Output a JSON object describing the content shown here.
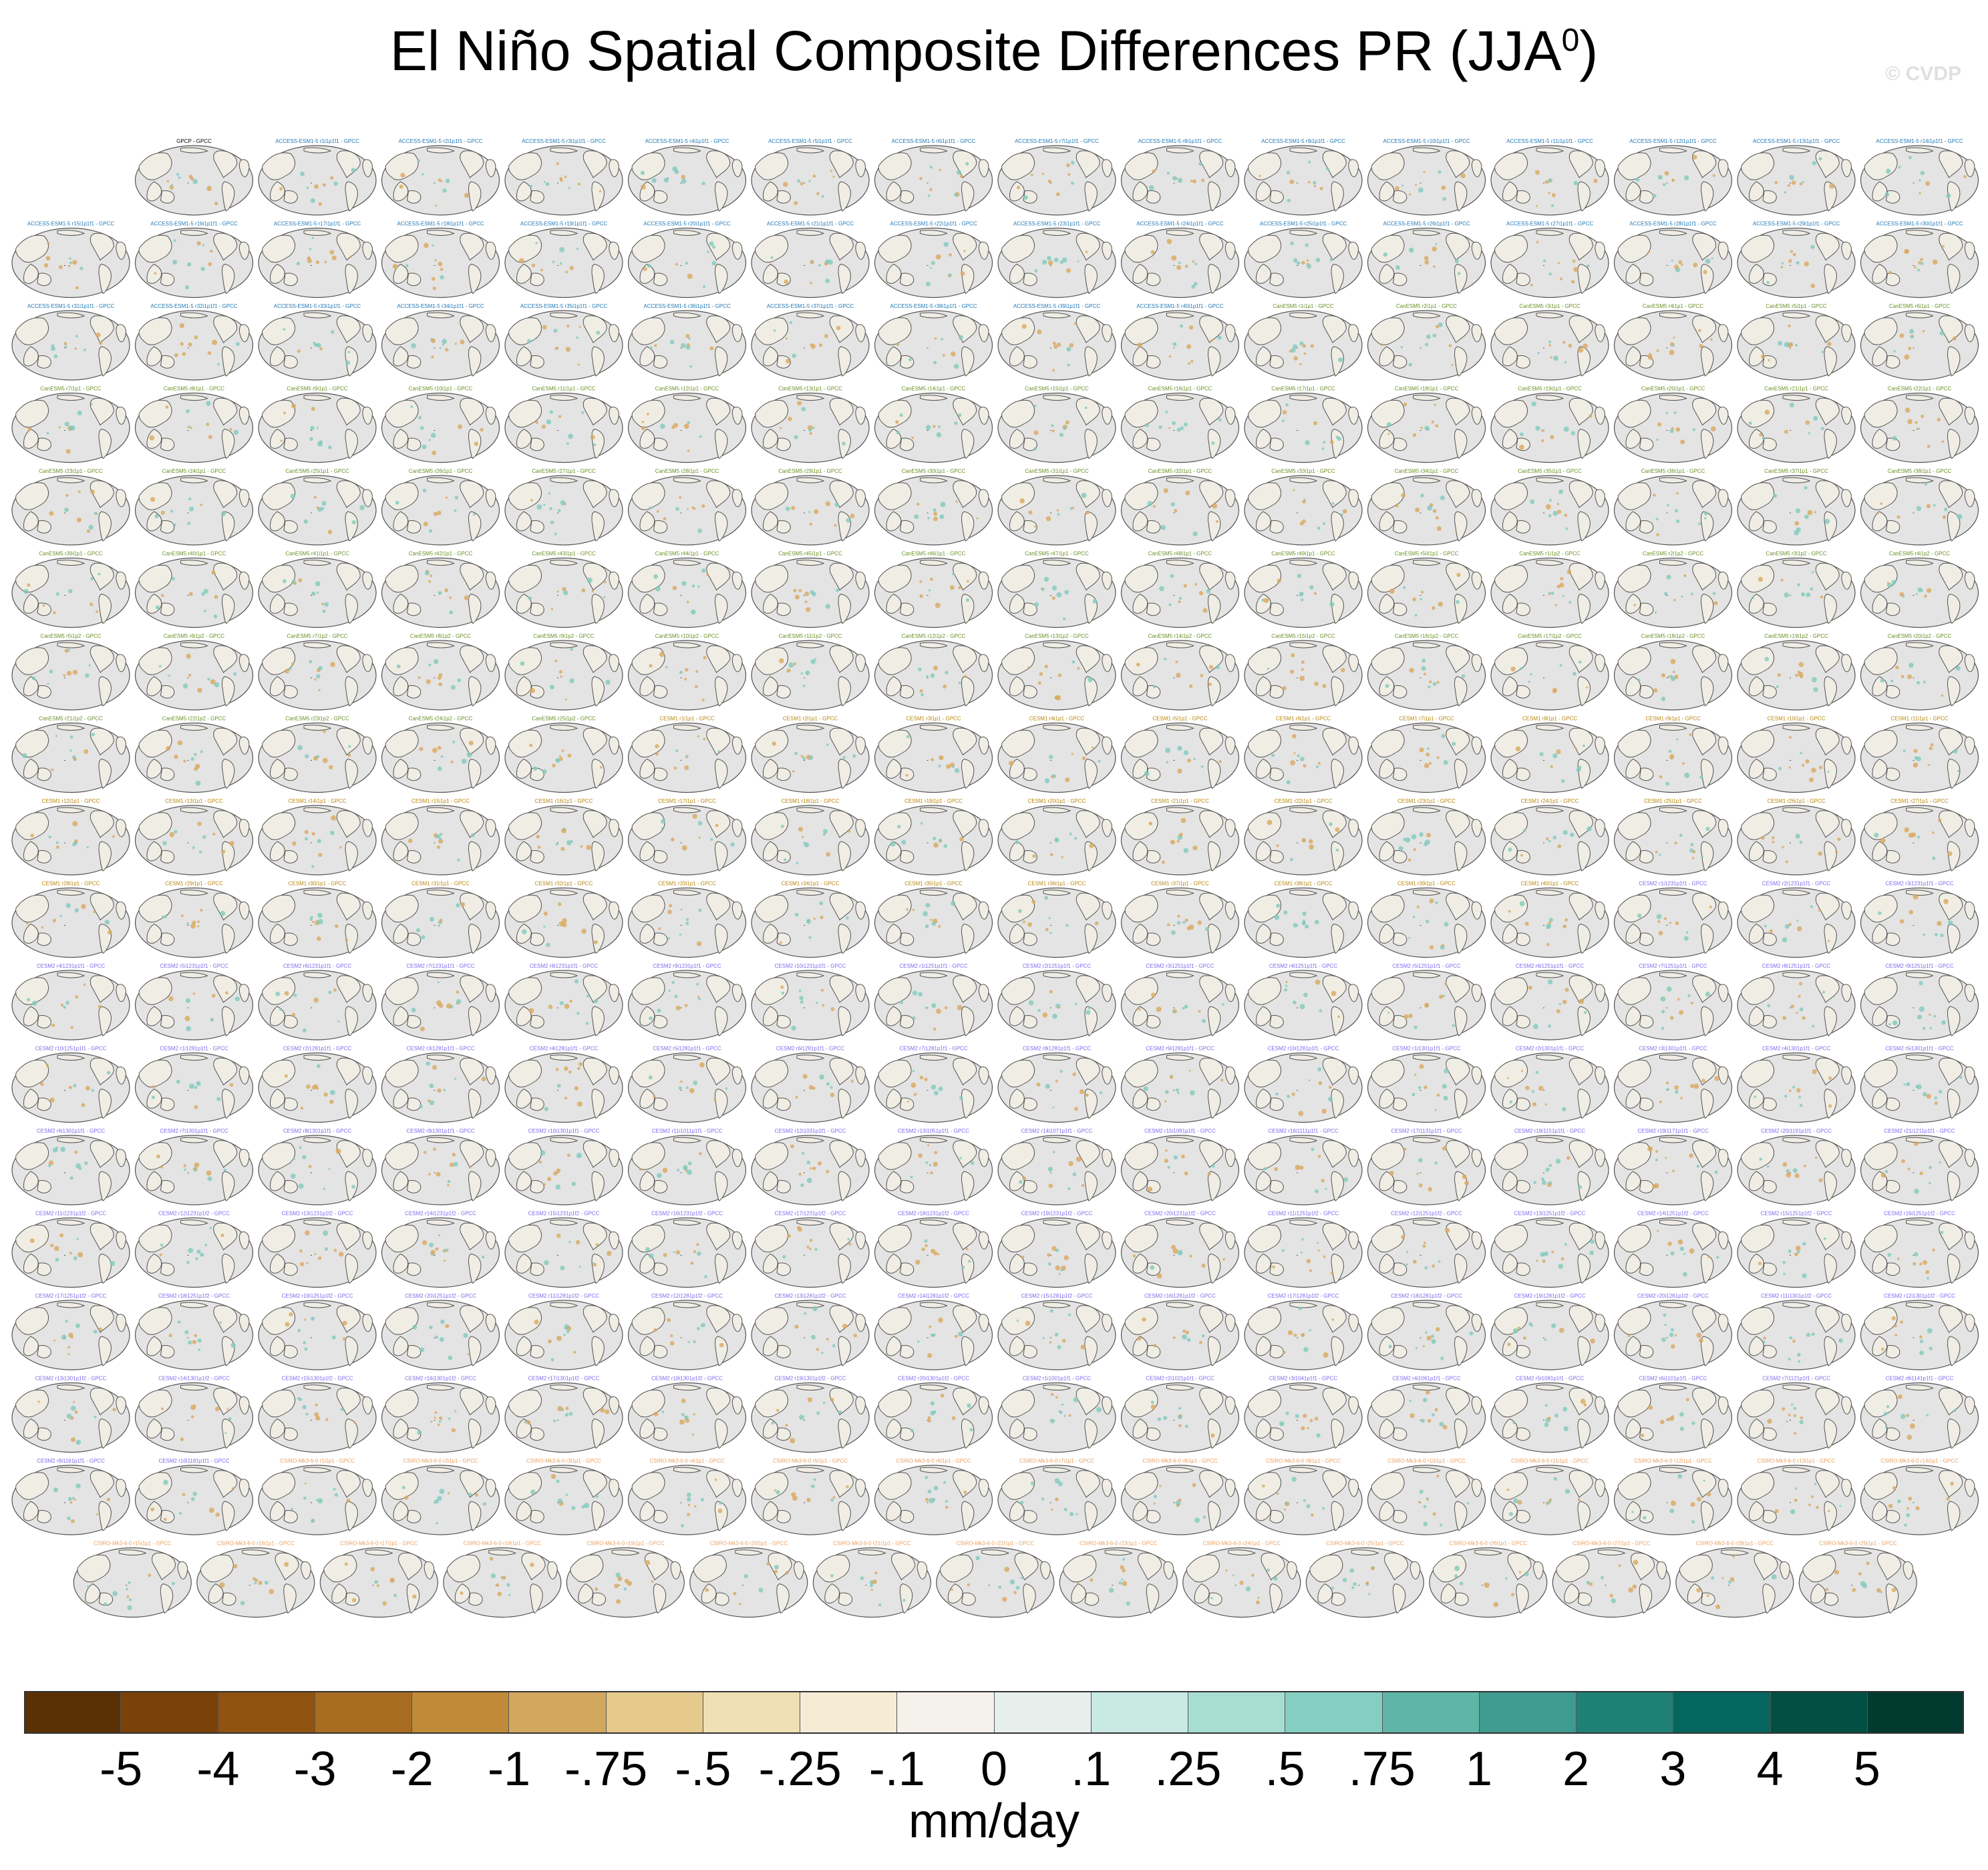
{
  "title": {
    "main": "El Niño Spatial Composite Differences PR (JJA",
    "superscript": "0",
    "close": ")"
  },
  "watermark": "© CVDP",
  "panels": {
    "row_counts": [
      15,
      16,
      16,
      16,
      16,
      16,
      16,
      16,
      16,
      16,
      16,
      16,
      16,
      16,
      16,
      16,
      16,
      15
    ],
    "labels": [
      [
        "GPCP - GPCC",
        "ACCESS-ESM1-5 r1i1p1f1 - GPCC",
        "ACCESS-ESM1-5 r2i1p1f1 - GPCC",
        "ACCESS-ESM1-5 r3i1p1f1 - GPCC",
        "ACCESS-ESM1-5 r4i1p1f1 - GPCC",
        "ACCESS-ESM1-5 r5i1p1f1 - GPCC",
        "ACCESS-ESM1-5 r6i1p1f1 - GPCC",
        "ACCESS-ESM1-5 r7i1p1f1 - GPCC",
        "ACCESS-ESM1-5 r8i1p1f1 - GPCC",
        "ACCESS-ESM1-5 r9i1p1f1 - GPCC",
        "ACCESS-ESM1-5 r10i1p1f1 - GPCC",
        "ACCESS-ESM1-5 r11i1p1f1 - GPCC",
        "ACCESS-ESM1-5 r12i1p1f1 - GPCC",
        "ACCESS-ESM1-5 r13i1p1f1 - GPCC",
        "ACCESS-ESM1-5 r14i1p1f1 - GPCC"
      ],
      [
        "ACCESS-ESM1-5 r15i1p1f1 - GPCC",
        "ACCESS-ESM1-5 r16i1p1f1 - GPCC",
        "ACCESS-ESM1-5 r17i1p1f1 - GPCC",
        "ACCESS-ESM1-5 r18i1p1f1 - GPCC",
        "ACCESS-ESM1-5 r19i1p1f1 - GPCC",
        "ACCESS-ESM1-5 r20i1p1f1 - GPCC",
        "ACCESS-ESM1-5 r21i1p1f1 - GPCC",
        "ACCESS-ESM1-5 r22i1p1f1 - GPCC",
        "ACCESS-ESM1-5 r23i1p1f1 - GPCC",
        "ACCESS-ESM1-5 r24i1p1f1 - GPCC",
        "ACCESS-ESM1-5 r25i1p1f1 - GPCC",
        "ACCESS-ESM1-5 r26i1p1f1 - GPCC",
        "ACCESS-ESM1-5 r27i1p1f1 - GPCC",
        "ACCESS-ESM1-5 r28i1p1f1 - GPCC",
        "ACCESS-ESM1-5 r29i1p1f1 - GPCC",
        "ACCESS-ESM1-5 r30i1p1f1 - GPCC"
      ],
      [
        "ACCESS-ESM1-5 r31i1p1f1 - GPCC",
        "ACCESS-ESM1-5 r32i1p1f1 - GPCC",
        "ACCESS-ESM1-5 r33i1p1f1 - GPCC",
        "ACCESS-ESM1-5 r34i1p1f1 - GPCC",
        "ACCESS-ESM1-5 r35i1p1f1 - GPCC",
        "ACCESS-ESM1-5 r36i1p1f1 - GPCC",
        "ACCESS-ESM1-5 r37i1p1f1 - GPCC",
        "ACCESS-ESM1-5 r38i1p1f1 - GPCC",
        "ACCESS-ESM1-5 r39i1p1f1 - GPCC",
        "ACCESS-ESM1-5 r40i1p1f1 - GPCC",
        "CanESM5 r1i1p1 - GPCC",
        "CanESM5 r2i1p1 - GPCC",
        "CanESM5 r3i1p1 - GPCC",
        "CanESM5 r4i1p1 - GPCC",
        "CanESM5 r5i1p1 - GPCC",
        "CanESM5 r6i1p1 - GPCC"
      ],
      [
        "CanESM5 r7i1p1 - GPCC",
        "CanESM5 r8i1p1 - GPCC",
        "CanESM5 r9i1p1 - GPCC",
        "CanESM5 r10i1p1 - GPCC",
        "CanESM5 r11i1p1 - GPCC",
        "CanESM5 r12i1p1 - GPCC",
        "CanESM5 r13i1p1 - GPCC",
        "CanESM5 r14i1p1 - GPCC",
        "CanESM5 r15i1p1 - GPCC",
        "CanESM5 r16i1p1 - GPCC",
        "CanESM5 r17i1p1 - GPCC",
        "CanESM5 r18i1p1 - GPCC",
        "CanESM5 r19i1p1 - GPCC",
        "CanESM5 r20i1p1 - GPCC",
        "CanESM5 r21i1p1 - GPCC",
        "CanESM5 r22i1p1 - GPCC"
      ],
      [
        "CanESM5 r23i1p1 - GPCC",
        "CanESM5 r24i1p1 - GPCC",
        "CanESM5 r25i1p1 - GPCC",
        "CanESM5 r26i1p1 - GPCC",
        "CanESM5 r27i1p1 - GPCC",
        "CanESM5 r28i1p1 - GPCC",
        "CanESM5 r29i1p1 - GPCC",
        "CanESM5 r30i1p1 - GPCC",
        "CanESM5 r31i1p1 - GPCC",
        "CanESM5 r32i1p1 - GPCC",
        "CanESM5 r33i1p1 - GPCC",
        "CanESM5 r34i1p1 - GPCC",
        "CanESM5 r35i1p1 - GPCC",
        "CanESM5 r36i1p1 - GPCC",
        "CanESM5 r37i1p1 - GPCC",
        "CanESM5 r38i1p1 - GPCC"
      ],
      [
        "CanESM5 r39i1p1 - GPCC",
        "CanESM5 r40i1p1 - GPCC",
        "CanESM5 r41i1p1 - GPCC",
        "CanESM5 r42i1p1 - GPCC",
        "CanESM5 r43i1p1 - GPCC",
        "CanESM5 r44i1p1 - GPCC",
        "CanESM5 r45i1p1 - GPCC",
        "CanESM5 r46i1p1 - GPCC",
        "CanESM5 r47i1p1 - GPCC",
        "CanESM5 r48i1p1 - GPCC",
        "CanESM5 r49i1p1 - GPCC",
        "CanESM5 r50i1p1 - GPCC",
        "CanESM5 r1i1p2 - GPCC",
        "CanESM5 r2i1p2 - GPCC",
        "CanESM5 r3i1p2 - GPCC",
        "CanESM5 r4i1p2 - GPCC"
      ],
      [
        "CanESM5 r5i1p2 - GPCC",
        "CanESM5 r6i1p2 - GPCC",
        "CanESM5 r7i1p2 - GPCC",
        "CanESM5 r8i1p2 - GPCC",
        "CanESM5 r9i1p2 - GPCC",
        "CanESM5 r10i1p2 - GPCC",
        "CanESM5 r11i1p2 - GPCC",
        "CanESM5 r12i1p2 - GPCC",
        "CanESM5 r13i1p2 - GPCC",
        "CanESM5 r14i1p2 - GPCC",
        "CanESM5 r15i1p2 - GPCC",
        "CanESM5 r16i1p2 - GPCC",
        "CanESM5 r17i1p2 - GPCC",
        "CanESM5 r18i1p2 - GPCC",
        "CanESM5 r19i1p2 - GPCC",
        "CanESM5 r20i1p2 - GPCC"
      ],
      [
        "CanESM5 r21i1p2 - GPCC",
        "CanESM5 r22i1p2 - GPCC",
        "CanESM5 r23i1p2 - GPCC",
        "CanESM5 r24i1p2 - GPCC",
        "CanESM5 r25i1p2 - GPCC",
        "CESM1 r1i1p1 - GPCC",
        "CESM1 r2i1p1 - GPCC",
        "CESM1 r3i1p1 - GPCC",
        "CESM1 r4i1p1 - GPCC",
        "CESM1 r5i1p1 - GPCC",
        "CESM1 r6i1p1 - GPCC",
        "CESM1 r7i1p1 - GPCC",
        "CESM1 r8i1p1 - GPCC",
        "CESM1 r9i1p1 - GPCC",
        "CESM1 r10i1p1 - GPCC",
        "CESM1 r11i1p1 - GPCC"
      ],
      [
        "CESM1 r12i1p1 - GPCC",
        "CESM1 r13i1p1 - GPCC",
        "CESM1 r14i1p1 - GPCC",
        "CESM1 r15i1p1 - GPCC",
        "CESM1 r16i1p1 - GPCC",
        "CESM1 r17i1p1 - GPCC",
        "CESM1 r18i1p1 - GPCC",
        "CESM1 r19i1p1 - GPCC",
        "CESM1 r20i1p1 - GPCC",
        "CESM1 r21i1p1 - GPCC",
        "CESM1 r22i1p1 - GPCC",
        "CESM1 r23i1p1 - GPCC",
        "CESM1 r24i1p1 - GPCC",
        "CESM1 r25i1p1 - GPCC",
        "CESM1 r26i1p1 - GPCC",
        "CESM1 r27i1p1 - GPCC"
      ],
      [
        "CESM1 r28i1p1 - GPCC",
        "CESM1 r29i1p1 - GPCC",
        "CESM1 r30i1p1 - GPCC",
        "CESM1 r31i1p1 - GPCC",
        "CESM1 r32i1p1 - GPCC",
        "CESM1 r33i1p1 - GPCC",
        "CESM1 r34i1p1 - GPCC",
        "CESM1 r35i1p1 - GPCC",
        "CESM1 r36i1p1 - GPCC",
        "CESM1 r37i1p1 - GPCC",
        "CESM1 r38i1p1 - GPCC",
        "CESM1 r39i1p1 - GPCC",
        "CESM1 r40i1p1 - GPCC",
        "CESM2 r1i1231p1f1 - GPCC",
        "CESM2 r2i1231p1f1 - GPCC",
        "CESM2 r3i1231p1f1 - GPCC"
      ],
      [
        "CESM2 r4i1231p1f1 - GPCC",
        "CESM2 r5i1231p1f1 - GPCC",
        "CESM2 r6i1231p1f1 - GPCC",
        "CESM2 r7i1231p1f1 - GPCC",
        "CESM2 r8i1231p1f1 - GPCC",
        "CESM2 r9i1231p1f1 - GPCC",
        "CESM2 r10i1231p1f1 - GPCC",
        "CESM2 r1i1251p1f1 - GPCC",
        "CESM2 r2i1251p1f1 - GPCC",
        "CESM2 r3i1251p1f1 - GPCC",
        "CESM2 r4i1251p1f1 - GPCC",
        "CESM2 r5i1251p1f1 - GPCC",
        "CESM2 r6i1251p1f1 - GPCC",
        "CESM2 r7i1251p1f1 - GPCC",
        "CESM2 r8i1251p1f1 - GPCC",
        "CESM2 r9i1251p1f1 - GPCC"
      ],
      [
        "CESM2 r10i1251p1f1 - GPCC",
        "CESM2 r1i1281p1f1 - GPCC",
        "CESM2 r2i1281p1f1 - GPCC",
        "CESM2 r3i1281p1f1 - GPCC",
        "CESM2 r4i1281p1f1 - GPCC",
        "CESM2 r5i1281p1f1 - GPCC",
        "CESM2 r6i1281p1f1 - GPCC",
        "CESM2 r7i1281p1f1 - GPCC",
        "CESM2 r8i1281p1f1 - GPCC",
        "CESM2 r9i1281p1f1 - GPCC",
        "CESM2 r10i1281p1f1 - GPCC",
        "CESM2 r1i1301p1f1 - GPCC",
        "CESM2 r2i1301p1f1 - GPCC",
        "CESM2 r3i1301p1f1 - GPCC",
        "CESM2 r4i1301p1f1 - GPCC",
        "CESM2 r5i1301p1f1 - GPCC"
      ],
      [
        "CESM2 r6i1301p1f1 - GPCC",
        "CESM2 r7i1301p1f1 - GPCC",
        "CESM2 r8i1301p1f1 - GPCC",
        "CESM2 r9i1301p1f1 - GPCC",
        "CESM2 r10i1301p1f1 - GPCC",
        "CESM2 r11i1011p1f1 - GPCC",
        "CESM2 r12i1031p1f1 - GPCC",
        "CESM2 r13i1051p1f1 - GPCC",
        "CESM2 r14i1071p1f1 - GPCC",
        "CESM2 r15i1091p1f1 - GPCC",
        "CESM2 r16i1111p1f1 - GPCC",
        "CESM2 r17i1131p1f1 - GPCC",
        "CESM2 r18i1151p1f1 - GPCC",
        "CESM2 r19i1171p1f1 - GPCC",
        "CESM2 r20i1191p1f1 - GPCC",
        "CESM2 r21i1211p1f1 - GPCC"
      ],
      [
        "CESM2 r11i1231p1f2 - GPCC",
        "CESM2 r12i1231p1f2 - GPCC",
        "CESM2 r13i1231p1f2 - GPCC",
        "CESM2 r14i1231p1f2 - GPCC",
        "CESM2 r15i1231p1f2 - GPCC",
        "CESM2 r16i1231p1f2 - GPCC",
        "CESM2 r17i1231p1f2 - GPCC",
        "CESM2 r18i1231p1f2 - GPCC",
        "CESM2 r19i1231p1f2 - GPCC",
        "CESM2 r20i1231p1f2 - GPCC",
        "CESM2 r11i1251p1f2 - GPCC",
        "CESM2 r12i1251p1f2 - GPCC",
        "CESM2 r13i1251p1f2 - GPCC",
        "CESM2 r14i1251p1f2 - GPCC",
        "CESM2 r15i1251p1f2 - GPCC",
        "CESM2 r16i1251p1f2 - GPCC"
      ],
      [
        "CESM2 r17i1251p1f2 - GPCC",
        "CESM2 r18i1251p1f2 - GPCC",
        "CESM2 r19i1251p1f2 - GPCC",
        "CESM2 r20i1251p1f2 - GPCC",
        "CESM2 r11i1281p1f2 - GPCC",
        "CESM2 r12i1281p1f2 - GPCC",
        "CESM2 r13i1281p1f2 - GPCC",
        "CESM2 r14i1281p1f2 - GPCC",
        "CESM2 r15i1281p1f2 - GPCC",
        "CESM2 r16i1281p1f2 - GPCC",
        "CESM2 r17i1281p1f2 - GPCC",
        "CESM2 r18i1281p1f2 - GPCC",
        "CESM2 r19i1281p1f2 - GPCC",
        "CESM2 r20i1281p1f2 - GPCC",
        "CESM2 r11i1301p1f2 - GPCC",
        "CESM2 r12i1301p1f2 - GPCC"
      ],
      [
        "CESM2 r13i1301p1f2 - GPCC",
        "CESM2 r14i1301p1f2 - GPCC",
        "CESM2 r15i1301p1f2 - GPCC",
        "CESM2 r16i1301p1f2 - GPCC",
        "CESM2 r17i1301p1f2 - GPCC",
        "CESM2 r18i1301p1f2 - GPCC",
        "CESM2 r19i1301p1f2 - GPCC",
        "CESM2 r20i1301p1f2 - GPCC",
        "CESM2 r1i1001p1f1 - GPCC",
        "CESM2 r2i1021p1f1 - GPCC",
        "CESM2 r3i1041p1f1 - GPCC",
        "CESM2 r4i1061p1f1 - GPCC",
        "CESM2 r5i1081p1f1 - GPCC",
        "CESM2 r6i1101p1f1 - GPCC",
        "CESM2 r7i1121p1f1 - GPCC",
        "CESM2 r8i1141p1f1 - GPCC"
      ],
      [
        "CESM2 r9i1161p1f1 - GPCC",
        "CESM2 r10i1181p1f1 - GPCC",
        "CSIRO-Mk3-6-0 r1i1p1 - GPCC",
        "CSIRO-Mk3-6-0 r2i1p1 - GPCC",
        "CSIRO-Mk3-6-0 r3i1p1 - GPCC",
        "CSIRO-Mk3-6-0 r4i1p1 - GPCC",
        "CSIRO-Mk3-6-0 r5i1p1 - GPCC",
        "CSIRO-Mk3-6-0 r6i1p1 - GPCC",
        "CSIRO-Mk3-6-0 r7i1p1 - GPCC",
        "CSIRO-Mk3-6-0 r8i1p1 - GPCC",
        "CSIRO-Mk3-6-0 r9i1p1 - GPCC",
        "CSIRO-Mk3-6-0 r10i1p1 - GPCC",
        "CSIRO-Mk3-6-0 r11i1p1 - GPCC",
        "CSIRO-Mk3-6-0 r12i1p1 - GPCC",
        "CSIRO-Mk3-6-0 r13i1p1 - GPCC",
        "CSIRO-Mk3-6-0 r14i1p1 - GPCC"
      ],
      [
        "CSIRO-Mk3-6-0 r15i1p1 - GPCC",
        "CSIRO-Mk3-6-0 r16i1p1 - GPCC",
        "CSIRO-Mk3-6-0 r17i1p1 - GPCC",
        "CSIRO-Mk3-6-0 r18i1p1 - GPCC",
        "CSIRO-Mk3-6-0 r19i1p1 - GPCC",
        "CSIRO-Mk3-6-0 r20i1p1 - GPCC",
        "CSIRO-Mk3-6-0 r21i1p1 - GPCC",
        "CSIRO-Mk3-6-0 r22i1p1 - GPCC",
        "CSIRO-Mk3-6-0 r23i1p1 - GPCC",
        "CSIRO-Mk3-6-0 r24i1p1 - GPCC",
        "CSIRO-Mk3-6-0 r25i1p1 - GPCC",
        "CSIRO-Mk3-6-0 r26i1p1 - GPCC",
        "CSIRO-Mk3-6-0 r27i1p1 - GPCC",
        "CSIRO-Mk3-6-0 r28i1p1 - GPCC",
        "CSIRO-Mk3-6-0 r29i1p1 - GPCC"
      ]
    ],
    "label_colors": {
      "obs": "#000000",
      "ACCESS-ESM1-5": "#1f77b4",
      "CanESM5": "#6b8e23",
      "CESM1": "#b8860b",
      "CESM2": "#7b68ee",
      "CSIRO-Mk3-6-0": "#e8a060"
    },
    "map_colors": {
      "ocean": "#e4e4e4",
      "land": "#f0ede4",
      "coast": "#555555",
      "wet": "#7fc9bd",
      "dry": "#d9a75c"
    }
  },
  "colorbar": {
    "colors": [
      "#5a3105",
      "#7a4208",
      "#8f520f",
      "#a86c20",
      "#c08a38",
      "#d2a75e",
      "#e6c98d",
      "#f1dfb6",
      "#f5ecd6",
      "#f5f2ec",
      "#e7efec",
      "#c9e9e3",
      "#a8ddd4",
      "#85cfc2",
      "#5fb6a8",
      "#3f9a8f",
      "#1f8078",
      "#05665f",
      "#024f43",
      "#023a2f"
    ],
    "tick_labels": [
      "-5",
      "-4",
      "-3",
      "-2",
      "-1",
      "-.75",
      "-.5",
      "-.25",
      "-.1",
      "0",
      ".1",
      ".25",
      ".5",
      ".75",
      "1",
      "2",
      "3",
      "4",
      "5"
    ],
    "units": "mm/day"
  }
}
